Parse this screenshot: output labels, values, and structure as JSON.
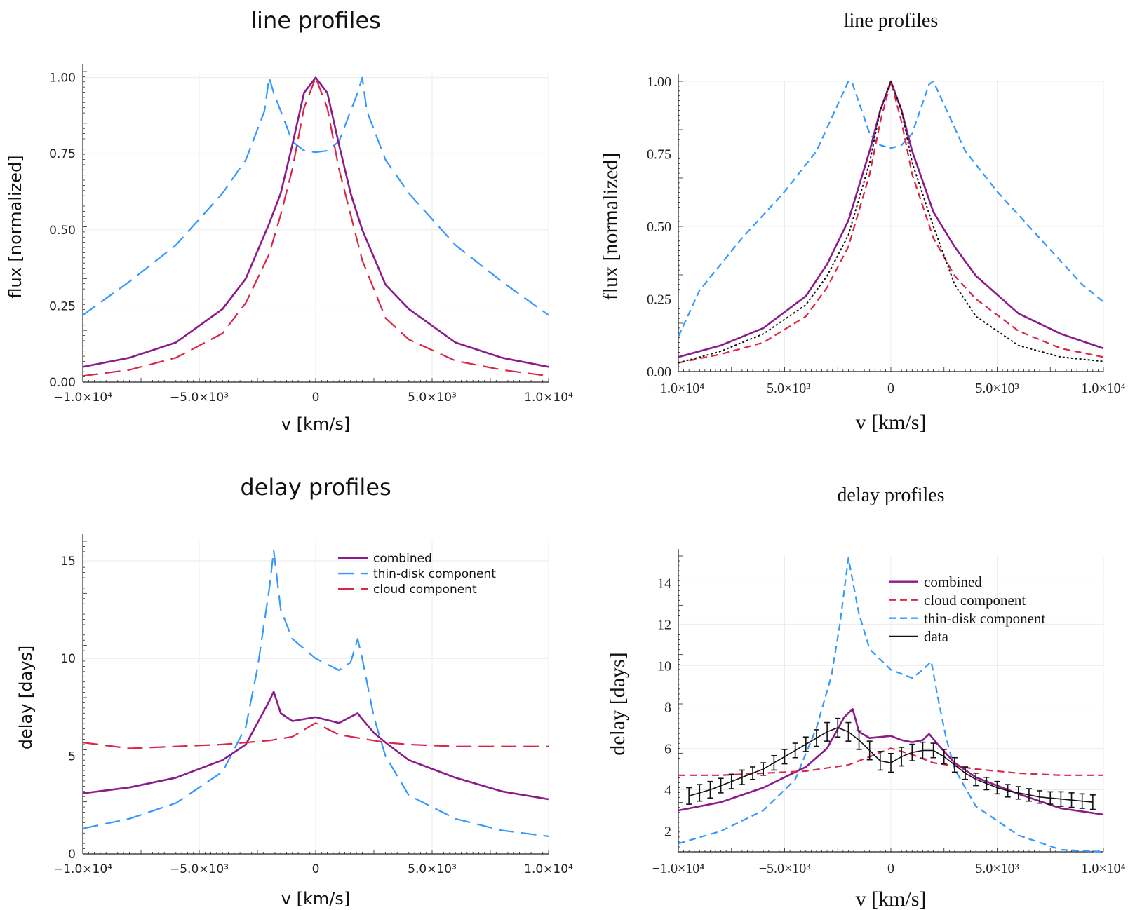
{
  "colors": {
    "combined": "#8b1a8b",
    "thin_disk": "#3399ff",
    "cloud": "#dc2646",
    "data": "#111111",
    "grid": "#ececec",
    "axis": "#222222"
  },
  "chart_data": [
    {
      "id": "top-left",
      "type": "line",
      "font": "sans",
      "title": "line profiles",
      "xlabel": "v [km/s]",
      "ylabel": "flux [normalized]",
      "xlim": [
        -10000,
        10000
      ],
      "ylim": [
        0,
        1.02
      ],
      "xticks": [
        {
          "v": -10000,
          "label": "−1.0×10⁴"
        },
        {
          "v": -5000,
          "label": "−5.0×10³"
        },
        {
          "v": 0,
          "label": "0"
        },
        {
          "v": 5000,
          "label": "5.0×10³"
        },
        {
          "v": 10000,
          "label": "1.0×10⁴"
        }
      ],
      "yticks": [
        {
          "v": 0,
          "label": "0.00"
        },
        {
          "v": 0.25,
          "label": "0.25"
        },
        {
          "v": 0.5,
          "label": "0.50"
        },
        {
          "v": 0.75,
          "label": "0.75"
        },
        {
          "v": 1,
          "label": "1.00"
        }
      ],
      "grid": true,
      "legend": null,
      "series": [
        {
          "key": "thin_disk",
          "style": "dash",
          "x": [
            -10000,
            -8000,
            -6000,
            -4000,
            -3000,
            -2200,
            -2000,
            -1800,
            -1000,
            -500,
            0,
            500,
            1000,
            1800,
            2000,
            2200,
            3000,
            4000,
            6000,
            8000,
            10000
          ],
          "y": [
            0.22,
            0.33,
            0.45,
            0.62,
            0.73,
            0.89,
            1.0,
            0.95,
            0.79,
            0.76,
            0.755,
            0.76,
            0.79,
            0.95,
            1.0,
            0.89,
            0.73,
            0.62,
            0.45,
            0.33,
            0.22
          ]
        },
        {
          "key": "combined",
          "style": "solid",
          "x": [
            -10000,
            -8000,
            -6000,
            -4000,
            -3000,
            -2000,
            -1500,
            -1000,
            -500,
            0,
            500,
            1000,
            1500,
            2000,
            3000,
            4000,
            6000,
            8000,
            10000
          ],
          "y": [
            0.05,
            0.08,
            0.13,
            0.24,
            0.34,
            0.52,
            0.62,
            0.78,
            0.95,
            1.0,
            0.95,
            0.78,
            0.62,
            0.5,
            0.32,
            0.24,
            0.13,
            0.08,
            0.05
          ]
        },
        {
          "key": "cloud",
          "style": "dash",
          "x": [
            -10000,
            -8000,
            -6000,
            -4000,
            -3000,
            -2000,
            -1500,
            -1000,
            -500,
            0,
            500,
            1000,
            1500,
            2000,
            3000,
            4000,
            6000,
            8000,
            10000
          ],
          "y": [
            0.02,
            0.04,
            0.08,
            0.16,
            0.26,
            0.42,
            0.55,
            0.7,
            0.9,
            1.0,
            0.9,
            0.7,
            0.55,
            0.4,
            0.21,
            0.14,
            0.07,
            0.04,
            0.02
          ]
        }
      ]
    },
    {
      "id": "top-right",
      "type": "line",
      "font": "serif",
      "title": "line profiles",
      "xlabel": "v [km/s]",
      "ylabel": "flux [normalized]",
      "xlim": [
        -10000,
        10000
      ],
      "ylim": [
        0,
        1
      ],
      "xticks": [
        {
          "v": -10000,
          "label": "−1.0×10⁴"
        },
        {
          "v": -5000,
          "label": "−5.0×10³"
        },
        {
          "v": 0,
          "label": "0"
        },
        {
          "v": 5000,
          "label": "5.0×10³"
        },
        {
          "v": 10000,
          "label": "1.0×10⁴"
        }
      ],
      "yticks": [
        {
          "v": 0,
          "label": "0.00"
        },
        {
          "v": 0.25,
          "label": "0.25"
        },
        {
          "v": 0.5,
          "label": "0.50"
        },
        {
          "v": 0.75,
          "label": "0.75"
        },
        {
          "v": 1,
          "label": "1.00"
        }
      ],
      "grid": true,
      "legend": null,
      "series": [
        {
          "key": "thin_disk",
          "style": "dash",
          "x": [
            -10000,
            -9000,
            -7000,
            -5000,
            -3500,
            -2500,
            -2000,
            -1800,
            -1000,
            -500,
            0,
            500,
            1000,
            1800,
            2000,
            2500,
            3500,
            5000,
            7000,
            9000,
            10000
          ],
          "y": [
            0.12,
            0.28,
            0.46,
            0.62,
            0.76,
            0.92,
            1.0,
            0.99,
            0.82,
            0.78,
            0.77,
            0.78,
            0.82,
            0.99,
            1.0,
            0.92,
            0.76,
            0.62,
            0.46,
            0.3,
            0.24
          ]
        },
        {
          "key": "combined",
          "style": "solid",
          "x": [
            -10000,
            -8000,
            -6000,
            -4000,
            -3000,
            -2000,
            -1000,
            -500,
            0,
            500,
            1000,
            2000,
            3000,
            4000,
            6000,
            8000,
            10000
          ],
          "y": [
            0.05,
            0.09,
            0.15,
            0.26,
            0.37,
            0.52,
            0.76,
            0.9,
            1.0,
            0.9,
            0.76,
            0.55,
            0.43,
            0.33,
            0.2,
            0.13,
            0.08
          ]
        },
        {
          "key": "cloud",
          "style": "dash",
          "x": [
            -10000,
            -8000,
            -6000,
            -4000,
            -3000,
            -2000,
            -1000,
            -500,
            0,
            500,
            1000,
            2000,
            3000,
            4000,
            6000,
            8000,
            10000
          ],
          "y": [
            0.03,
            0.06,
            0.1,
            0.19,
            0.29,
            0.43,
            0.68,
            0.86,
            1.0,
            0.86,
            0.68,
            0.46,
            0.33,
            0.25,
            0.14,
            0.08,
            0.05
          ]
        },
        {
          "key": "data",
          "style": "dot",
          "x": [
            -10000,
            -8000,
            -6000,
            -4000,
            -3000,
            -2000,
            -1000,
            -500,
            0,
            500,
            1000,
            2000,
            3000,
            4000,
            6000,
            8000,
            10000
          ],
          "y": [
            0.03,
            0.07,
            0.13,
            0.23,
            0.33,
            0.47,
            0.72,
            0.9,
            1.0,
            0.9,
            0.72,
            0.5,
            0.3,
            0.19,
            0.09,
            0.05,
            0.035
          ]
        }
      ]
    },
    {
      "id": "bottom-left",
      "type": "line",
      "font": "sans",
      "title": "delay profiles",
      "xlabel": "v [km/s]",
      "ylabel": "delay [days]",
      "xlim": [
        -10000,
        10000
      ],
      "ylim": [
        0,
        16
      ],
      "xticks": [
        {
          "v": -10000,
          "label": "−1.0×10⁴"
        },
        {
          "v": -5000,
          "label": "−5.0×10³"
        },
        {
          "v": 0,
          "label": "0"
        },
        {
          "v": 5000,
          "label": "5.0×10³"
        },
        {
          "v": 10000,
          "label": "1.0×10⁴"
        }
      ],
      "yticks": [
        {
          "v": 0,
          "label": "0"
        },
        {
          "v": 5,
          "label": "5"
        },
        {
          "v": 10,
          "label": "10"
        },
        {
          "v": 15,
          "label": "15"
        }
      ],
      "grid": true,
      "legend": {
        "position": "top-right",
        "entries": [
          {
            "key": "combined",
            "label": "combined"
          },
          {
            "key": "thin_disk",
            "label": "thin-disk component"
          },
          {
            "key": "cloud",
            "label": "cloud component"
          }
        ]
      },
      "series": [
        {
          "key": "thin_disk",
          "style": "dash",
          "x": [
            -10000,
            -8000,
            -6000,
            -4000,
            -3000,
            -2500,
            -2000,
            -1800,
            -1500,
            -1000,
            0,
            1000,
            1500,
            1800,
            2000,
            2500,
            3000,
            4000,
            6000,
            8000,
            10000
          ],
          "y": [
            1.3,
            1.8,
            2.6,
            4.2,
            6.5,
            9.5,
            13.5,
            15.5,
            12.5,
            11.0,
            10.0,
            9.4,
            9.8,
            11.0,
            10.0,
            7.0,
            5.0,
            3.0,
            1.8,
            1.2,
            0.9
          ]
        },
        {
          "key": "combined",
          "style": "solid",
          "x": [
            -10000,
            -8000,
            -6000,
            -4000,
            -3000,
            -2000,
            -1800,
            -1500,
            -1000,
            0,
            1000,
            1800,
            2000,
            2500,
            3000,
            4000,
            6000,
            8000,
            10000
          ],
          "y": [
            3.1,
            3.4,
            3.9,
            4.8,
            5.6,
            7.8,
            8.3,
            7.2,
            6.8,
            7.0,
            6.7,
            7.2,
            6.9,
            6.2,
            5.7,
            4.8,
            3.9,
            3.2,
            2.8
          ]
        },
        {
          "key": "cloud",
          "style": "dash",
          "x": [
            -10000,
            -8000,
            -6000,
            -4000,
            -3000,
            -2000,
            -1000,
            0,
            1000,
            2000,
            3000,
            4000,
            6000,
            8000,
            10000
          ],
          "y": [
            5.7,
            5.4,
            5.5,
            5.6,
            5.7,
            5.8,
            6.0,
            6.7,
            6.1,
            5.9,
            5.7,
            5.6,
            5.5,
            5.5,
            5.5
          ]
        }
      ]
    },
    {
      "id": "bottom-right",
      "type": "line",
      "font": "serif",
      "title": "delay profiles",
      "xlabel": "v [km/s]",
      "ylabel": "delay [days]",
      "xlim": [
        -10000,
        10000
      ],
      "ylim": [
        1,
        15.3
      ],
      "xticks": [
        {
          "v": -10000,
          "label": "−1.0×10⁴"
        },
        {
          "v": -5000,
          "label": "−5.0×10³"
        },
        {
          "v": 0,
          "label": "0"
        },
        {
          "v": 5000,
          "label": "5.0×10³"
        },
        {
          "v": 10000,
          "label": "1.0×10⁴"
        }
      ],
      "yticks": [
        {
          "v": 2,
          "label": "2"
        },
        {
          "v": 4,
          "label": "4"
        },
        {
          "v": 6,
          "label": "6"
        },
        {
          "v": 8,
          "label": "8"
        },
        {
          "v": 10,
          "label": "10"
        },
        {
          "v": 12,
          "label": "12"
        },
        {
          "v": 14,
          "label": "14"
        }
      ],
      "grid": true,
      "legend": {
        "position": "top-center",
        "entries": [
          {
            "key": "combined",
            "label": "combined"
          },
          {
            "key": "cloud",
            "label": "cloud component"
          },
          {
            "key": "thin_disk",
            "label": "thin-disk component"
          },
          {
            "key": "data",
            "label": "data"
          }
        ]
      },
      "series": [
        {
          "key": "thin_disk",
          "style": "dash",
          "x": [
            -10000,
            -8000,
            -6000,
            -4500,
            -3500,
            -2800,
            -2400,
            -2000,
            -1500,
            -1000,
            0,
            1000,
            1500,
            1900,
            2200,
            2600,
            3000,
            4000,
            6000,
            8000,
            10000
          ],
          "y": [
            1.4,
            2.0,
            3.0,
            4.5,
            7.0,
            9.5,
            12.0,
            15.2,
            12.5,
            10.8,
            9.8,
            9.4,
            9.8,
            10.2,
            8.5,
            6.5,
            5.0,
            3.2,
            1.8,
            1.1,
            0.8
          ]
        },
        {
          "key": "combined",
          "style": "solid",
          "x": [
            -10000,
            -8000,
            -6000,
            -4000,
            -3000,
            -2200,
            -1800,
            -1500,
            -1000,
            0,
            500,
            1000,
            1500,
            1800,
            2200,
            3000,
            4000,
            6000,
            8000,
            10000
          ],
          "y": [
            3.0,
            3.4,
            4.1,
            5.1,
            6.0,
            7.5,
            7.9,
            6.8,
            6.5,
            6.6,
            6.4,
            6.3,
            6.4,
            6.7,
            6.2,
            5.3,
            4.6,
            3.8,
            3.1,
            2.8
          ]
        },
        {
          "key": "cloud",
          "style": "dash",
          "x": [
            -10000,
            -8000,
            -6000,
            -4000,
            -2000,
            -1000,
            0,
            1000,
            2000,
            4000,
            6000,
            8000,
            10000
          ],
          "y": [
            4.7,
            4.7,
            4.8,
            4.9,
            5.2,
            5.6,
            6.0,
            5.7,
            5.3,
            5.0,
            4.8,
            4.7,
            4.7
          ]
        },
        {
          "key": "data",
          "style": "errorbar",
          "x": [
            -9500,
            -9000,
            -8500,
            -8000,
            -7500,
            -7000,
            -6500,
            -6000,
            -5500,
            -5000,
            -4500,
            -4000,
            -3500,
            -3000,
            -2500,
            -2000,
            -1500,
            -1000,
            -500,
            0,
            500,
            1000,
            1500,
            2000,
            2500,
            3000,
            3500,
            4000,
            4500,
            5000,
            5500,
            6000,
            6500,
            7000,
            7500,
            8000,
            8500,
            9000,
            9500
          ],
          "y": [
            3.7,
            3.85,
            4.0,
            4.2,
            4.4,
            4.6,
            4.8,
            5.0,
            5.3,
            5.6,
            5.9,
            6.2,
            6.5,
            6.8,
            7.0,
            6.8,
            6.4,
            5.9,
            5.4,
            5.3,
            5.6,
            5.8,
            5.9,
            5.9,
            5.6,
            5.2,
            4.8,
            4.5,
            4.3,
            4.1,
            3.95,
            3.85,
            3.75,
            3.65,
            3.6,
            3.55,
            3.5,
            3.45,
            3.4
          ],
          "err": [
            0.4,
            0.4,
            0.4,
            0.35,
            0.35,
            0.35,
            0.3,
            0.3,
            0.35,
            0.35,
            0.35,
            0.35,
            0.4,
            0.45,
            0.45,
            0.45,
            0.45,
            0.45,
            0.45,
            0.45,
            0.45,
            0.4,
            0.4,
            0.35,
            0.35,
            0.35,
            0.3,
            0.3,
            0.3,
            0.3,
            0.3,
            0.3,
            0.3,
            0.3,
            0.3,
            0.35,
            0.35,
            0.35,
            0.35
          ]
        }
      ]
    }
  ]
}
